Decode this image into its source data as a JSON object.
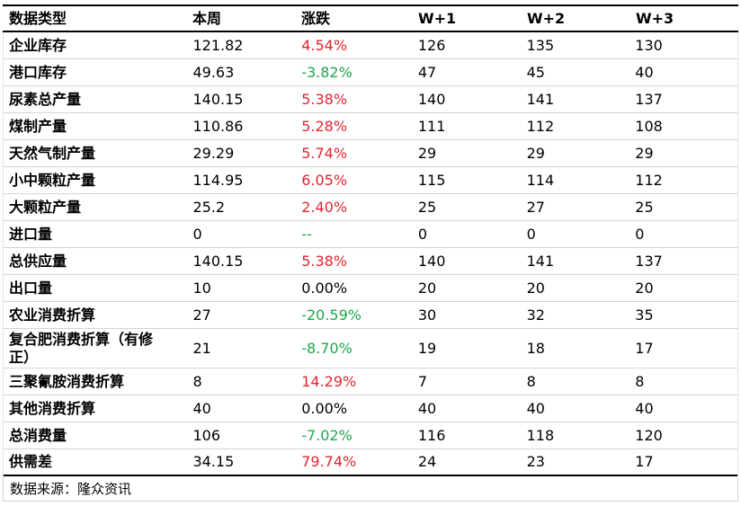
{
  "table": {
    "headers": [
      "数据类型",
      "本周",
      "涨跌",
      "W+1",
      "W+2",
      "W+3"
    ],
    "rows": [
      {
        "label": "企业库存",
        "this_week": "121.82",
        "change": "4.54%",
        "change_color": "#e3262f",
        "w1": "126",
        "w2": "135",
        "w3": "130"
      },
      {
        "label": "港口库存",
        "this_week": "49.63",
        "change": "-3.82%",
        "change_color": "#1ba84b",
        "w1": "47",
        "w2": "45",
        "w3": "40"
      },
      {
        "label": "尿素总产量",
        "this_week": "140.15",
        "change": "5.38%",
        "change_color": "#e3262f",
        "w1": "140",
        "w2": "141",
        "w3": "137"
      },
      {
        "label": "煤制产量",
        "this_week": "110.86",
        "change": "5.28%",
        "change_color": "#e3262f",
        "w1": "111",
        "w2": "112",
        "w3": "108"
      },
      {
        "label": "天然气制产量",
        "this_week": "29.29",
        "change": "5.74%",
        "change_color": "#e3262f",
        "w1": "29",
        "w2": "29",
        "w3": "29"
      },
      {
        "label": "小中颗粒产量",
        "this_week": "114.95",
        "change": "6.05%",
        "change_color": "#e3262f",
        "w1": "115",
        "w2": "114",
        "w3": "112"
      },
      {
        "label": "大颗粒产量",
        "this_week": "25.2",
        "change": "2.40%",
        "change_color": "#e3262f",
        "w1": "25",
        "w2": "27",
        "w3": "25"
      },
      {
        "label": "进口量",
        "this_week": "0",
        "change": "--",
        "change_color": "#1ba84b",
        "w1": "0",
        "w2": "0",
        "w3": "0"
      },
      {
        "label": "总供应量",
        "this_week": "140.15",
        "change": "5.38%",
        "change_color": "#e3262f",
        "w1": "140",
        "w2": "141",
        "w3": "137"
      },
      {
        "label": "出口量",
        "this_week": "10",
        "change": "0.00%",
        "change_color": "#000000",
        "w1": "20",
        "w2": "20",
        "w3": "20"
      },
      {
        "label": "农业消费折算",
        "this_week": "27",
        "change": "-20.59%",
        "change_color": "#1ba84b",
        "w1": "30",
        "w2": "32",
        "w3": "35"
      },
      {
        "label": "复合肥消费折算（有修正）",
        "this_week": "21",
        "change": "-8.70%",
        "change_color": "#1ba84b",
        "w1": "19",
        "w2": "18",
        "w3": "17"
      },
      {
        "label": "三聚氰胺消费折算",
        "this_week": "8",
        "change": "14.29%",
        "change_color": "#e3262f",
        "w1": "7",
        "w2": "8",
        "w3": "8"
      },
      {
        "label": "其他消费折算",
        "this_week": "40",
        "change": "0.00%",
        "change_color": "#000000",
        "w1": "40",
        "w2": "40",
        "w3": "40"
      },
      {
        "label": "总消费量",
        "this_week": "106",
        "change": "-7.02%",
        "change_color": "#1ba84b",
        "w1": "116",
        "w2": "118",
        "w3": "120"
      },
      {
        "label": "供需差",
        "this_week": "34.15",
        "change": "79.74%",
        "change_color": "#e3262f",
        "w1": "24",
        "w2": "23",
        "w3": "17"
      }
    ]
  },
  "footer": {
    "source": "数据来源：隆众资讯"
  }
}
